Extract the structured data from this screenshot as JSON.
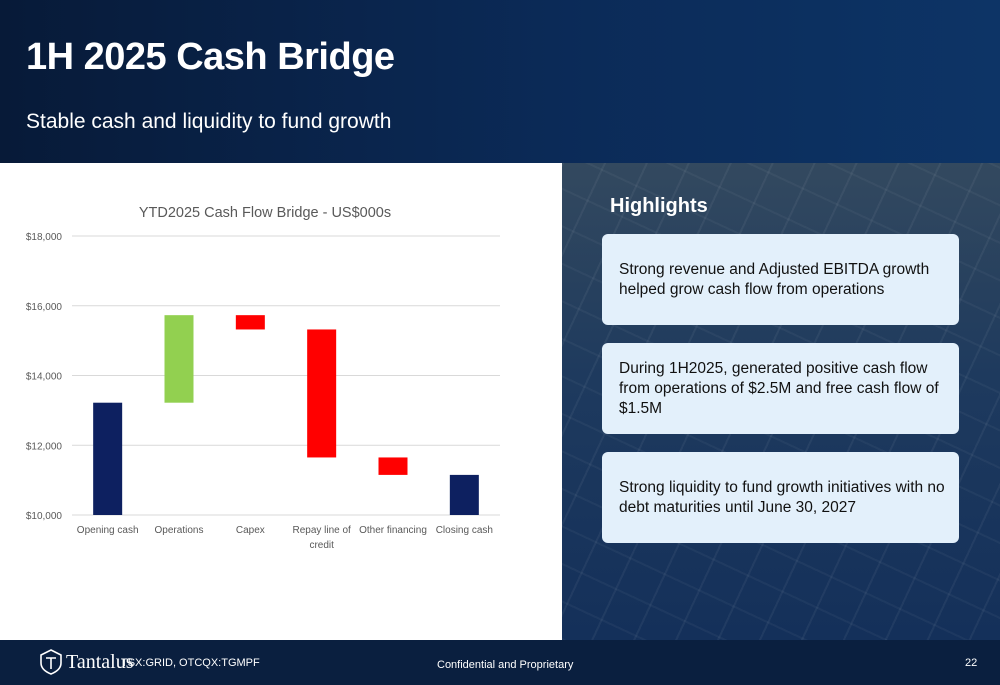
{
  "header": {
    "title": "1H 2025 Cash Bridge",
    "subtitle": "Stable cash and liquidity to fund growth"
  },
  "highlights": {
    "title": "Highlights",
    "cards": [
      "Strong revenue and Adjusted EBITDA growth helped grow cash flow from operations",
      "During 1H2025, generated positive cash flow from operations of $2.5M and free cash flow of $1.5M",
      "Strong liquidity to fund growth initiatives with no debt maturities until June 30, 2027"
    ]
  },
  "footer": {
    "logo_text": "Tantalus",
    "ticker": "TSX:GRID, OTCQX:TGMPF",
    "confidential": "Confidential and Proprietary",
    "page_number": "22"
  },
  "chart_data": {
    "type": "bar",
    "subtype": "waterfall",
    "title": "YTD2025 Cash Flow Bridge - US$000s",
    "xlabel": "",
    "ylabel": "",
    "ylim": [
      10000,
      18000
    ],
    "yticks": [
      10000,
      12000,
      14000,
      16000,
      18000
    ],
    "ytick_labels": [
      "$10,000",
      "$12,000",
      "$14,000",
      "$16,000",
      "$18,000"
    ],
    "grid": true,
    "legend": "none",
    "categories": [
      "Opening cash",
      "Operations",
      "Capex",
      "Repay line of credit",
      "Other financing",
      "Closing cash"
    ],
    "bars": [
      {
        "category": "Opening cash",
        "start": 10000,
        "end": 13220,
        "kind": "total"
      },
      {
        "category": "Operations",
        "start": 13220,
        "end": 15730,
        "kind": "increase"
      },
      {
        "category": "Capex",
        "start": 15730,
        "end": 15320,
        "kind": "decrease"
      },
      {
        "category": "Repay line of credit",
        "start": 15320,
        "end": 11650,
        "kind": "decrease"
      },
      {
        "category": "Other financing",
        "start": 11650,
        "end": 11150,
        "kind": "decrease"
      },
      {
        "category": "Closing cash",
        "start": 10000,
        "end": 11150,
        "kind": "total"
      }
    ],
    "colors": {
      "total": "#0d2060",
      "increase": "#92d050",
      "decrease": "#ff0000",
      "grid": "#d9d9d9",
      "text": "#595959"
    }
  }
}
